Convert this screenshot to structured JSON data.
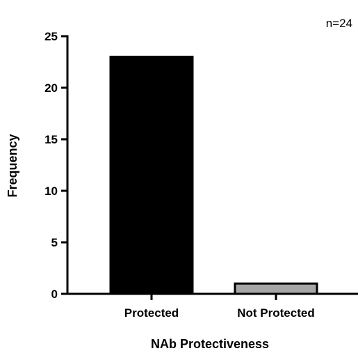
{
  "chart_data": {
    "type": "bar",
    "categories": [
      "Protected",
      "Not Protected"
    ],
    "values": [
      23,
      1
    ],
    "bar_colors": [
      "#000000",
      "#a6a6a6"
    ],
    "title": "",
    "xlabel": "NAb Protectiveness",
    "ylabel": "Frequency",
    "ylim": [
      0,
      25
    ],
    "yticks": [
      0,
      5,
      10,
      15,
      20,
      25
    ],
    "annotation": "n=24",
    "grid": false
  }
}
